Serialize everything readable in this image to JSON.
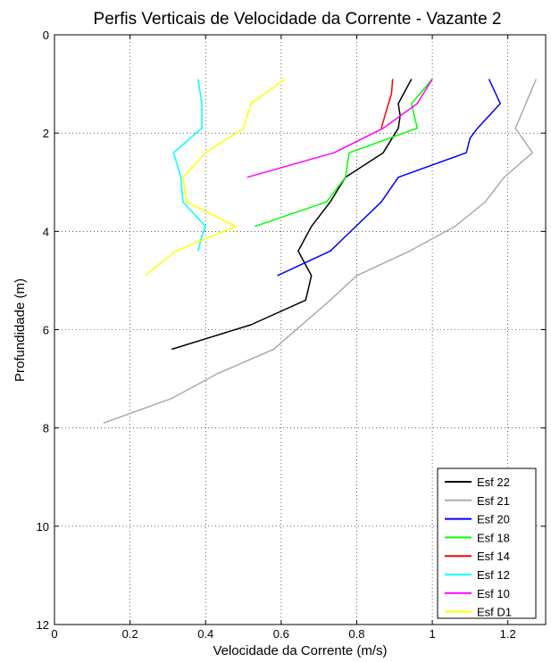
{
  "chart_data": {
    "type": "line",
    "title": "Perfis Verticais de Velocidade da Corrente - Vazante 2",
    "xlabel": "Velocidade da Corrente (m/s)",
    "ylabel": "Profundidade (m)",
    "xlim": [
      0,
      1.3
    ],
    "ylim": [
      0,
      12
    ],
    "y_reversed": true,
    "x_ticks": [
      0,
      0.2,
      0.4,
      0.6,
      0.8,
      1,
      1.2
    ],
    "x_tick_labels": [
      "0",
      "0.2",
      "0.4",
      "0.6",
      "0.8",
      "1",
      "1.2"
    ],
    "y_ticks": [
      0,
      2,
      4,
      6,
      8,
      10,
      12
    ],
    "y_tick_labels": [
      "0",
      "2",
      "4",
      "6",
      "8",
      "10",
      "12"
    ],
    "grid": true,
    "legend_position": "bottom-right",
    "series": [
      {
        "name": "Esf 22",
        "color": "#000000",
        "x": [
          0.945,
          0.91,
          0.915,
          0.91,
          0.87,
          0.77,
          0.73,
          0.68,
          0.645,
          0.68,
          0.665,
          0.52,
          0.31
        ],
        "y": [
          0.9,
          1.4,
          1.65,
          1.9,
          2.4,
          2.9,
          3.4,
          3.9,
          4.4,
          4.9,
          5.4,
          5.9,
          6.4
        ]
      },
      {
        "name": "Esf 21",
        "color": "#aaaaaa",
        "x": [
          1.275,
          1.22,
          1.265,
          1.19,
          1.14,
          1.06,
          0.94,
          0.8,
          0.73,
          0.58,
          0.43,
          0.31,
          0.13
        ],
        "y": [
          0.9,
          1.9,
          2.4,
          2.9,
          3.4,
          3.9,
          4.4,
          4.9,
          5.4,
          6.4,
          6.9,
          7.4,
          7.9
        ]
      },
      {
        "name": "Esf 20",
        "color": "#0000ff",
        "x": [
          1.15,
          1.18,
          1.12,
          1.1,
          1.09,
          0.91,
          0.865,
          0.73,
          0.59
        ],
        "y": [
          0.9,
          1.4,
          1.9,
          2.1,
          2.4,
          2.9,
          3.4,
          4.4,
          4.9
        ]
      },
      {
        "name": "Esf 18",
        "color": "#00ff00",
        "x": [
          1.0,
          0.945,
          0.96,
          0.78,
          0.77,
          0.72,
          0.53
        ],
        "y": [
          0.9,
          1.4,
          1.9,
          2.4,
          2.9,
          3.4,
          3.9
        ]
      },
      {
        "name": "Esf 14",
        "color": "#ff0000",
        "x": [
          0.895,
          0.892,
          0.88,
          0.865
        ],
        "y": [
          0.9,
          1.2,
          1.5,
          1.9
        ]
      },
      {
        "name": "Esf 12",
        "color": "#00ffff",
        "x": [
          0.38,
          0.39,
          0.39,
          0.315,
          0.335,
          0.34,
          0.4,
          0.39,
          0.38
        ],
        "y": [
          0.9,
          1.4,
          1.9,
          2.4,
          2.9,
          3.4,
          3.9,
          4.1,
          4.4
        ]
      },
      {
        "name": "Esf 10",
        "color": "#ff00ff",
        "x": [
          1.0,
          0.96,
          0.87,
          0.74,
          0.51
        ],
        "y": [
          0.9,
          1.4,
          1.9,
          2.4,
          2.9
        ]
      },
      {
        "name": "Esf D1",
        "color": "#ffff00",
        "x": [
          0.61,
          0.52,
          0.5,
          0.4,
          0.34,
          0.35,
          0.48,
          0.32,
          0.24
        ],
        "y": [
          0.9,
          1.4,
          1.9,
          2.4,
          2.9,
          3.4,
          3.9,
          4.4,
          4.9
        ]
      }
    ]
  }
}
